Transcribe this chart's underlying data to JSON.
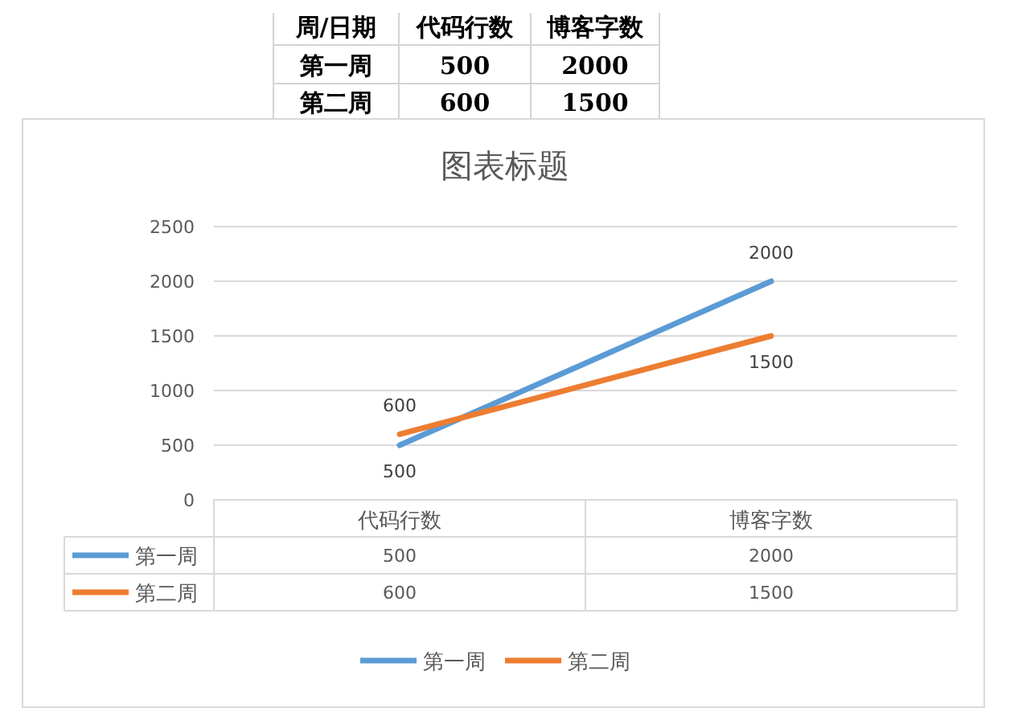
{
  "chart_data": {
    "type": "line",
    "title": "图表标题",
    "annotations": [
      "周/日期"
    ],
    "categories": [
      "代码行数",
      "博客字数"
    ],
    "series": [
      {
        "name": "第一周",
        "color": "#5b9bd5",
        "values": [
          500,
          2000
        ],
        "value_labels": [
          "500",
          "2000"
        ]
      },
      {
        "name": "第二周",
        "color": "#ed7d31",
        "values": [
          600,
          1500
        ],
        "value_labels": [
          "600",
          "1500"
        ]
      }
    ],
    "ylim": [
      0,
      2500
    ],
    "yticks": [
      0,
      500,
      1000,
      1500,
      2000,
      2500
    ],
    "grid": "y",
    "legend": "bottom",
    "marker": "none",
    "line_style": "solid"
  }
}
